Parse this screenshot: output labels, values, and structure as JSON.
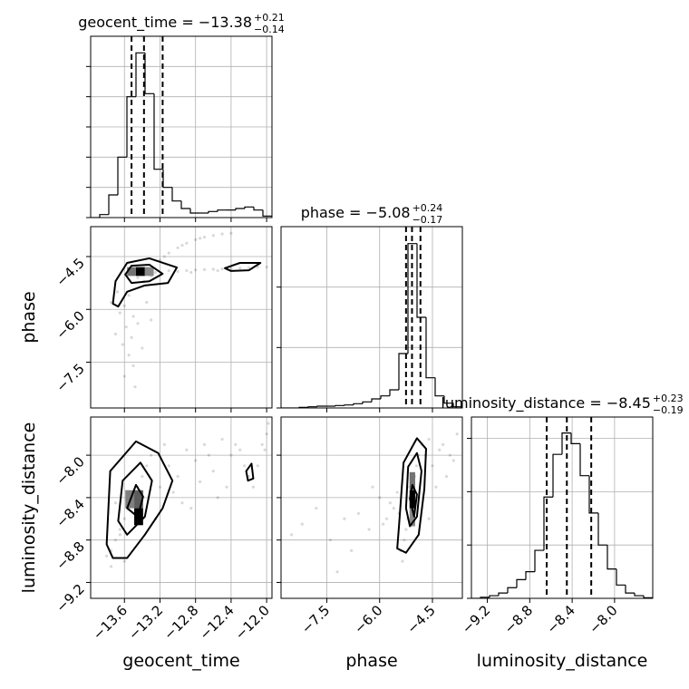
{
  "chart_data": {
    "type": "corner",
    "params": [
      {
        "label": "geocent_time",
        "title": "geocent_time = −13.38",
        "title_sup": "+0.21",
        "title_sub": "−0.14",
        "lim": [
          -13.98,
          -11.94
        ],
        "ticks": [
          {
            "value": -13.6,
            "label": "−13.6"
          },
          {
            "value": -13.2,
            "label": "−13.2"
          },
          {
            "value": -12.8,
            "label": "−12.8"
          },
          {
            "value": -12.4,
            "label": "−12.4"
          },
          {
            "value": -12.0,
            "label": "−12.0"
          }
        ],
        "quantiles": [
          -13.52,
          -13.38,
          -13.17
        ],
        "hist": {
          "bins": [
            -13.98,
            -13.878,
            -13.776,
            -13.674,
            -13.572,
            -13.47,
            -13.368,
            -13.266,
            -13.164,
            -13.062,
            -12.96,
            -12.858,
            -12.756,
            -12.654,
            -12.552,
            -12.45,
            -12.348,
            -12.246,
            -12.144,
            -12.042,
            -11.94
          ],
          "counts": [
            0,
            0.1,
            0.75,
            2.0,
            4.0,
            5.45,
            4.1,
            1.6,
            1.0,
            0.55,
            0.3,
            0.15,
            0.15,
            0.2,
            0.25,
            0.25,
            0.3,
            0.35,
            0.25,
            0.05
          ],
          "ylim": [
            0,
            6
          ],
          "yticks": [
            0,
            1,
            2,
            3,
            4,
            5
          ]
        }
      },
      {
        "label": "phase",
        "title": "phase = −5.08",
        "title_sup": "+0.24",
        "title_sub": "−0.17",
        "lim": [
          -8.8,
          -3.65
        ],
        "ticks": [
          {
            "value": -7.5,
            "label": "−7.5"
          },
          {
            "value": -6.0,
            "label": "−6.0"
          },
          {
            "value": -4.5,
            "label": "−4.5"
          }
        ],
        "quantiles": [
          -5.25,
          -5.08,
          -4.84
        ],
        "hist": {
          "bins": [
            -8.8,
            -8.5425,
            -8.285,
            -8.0275,
            -7.77,
            -7.5125,
            -7.255,
            -6.9975,
            -6.74,
            -6.4825,
            -6.225,
            -5.9675,
            -5.71,
            -5.4525,
            -5.195,
            -4.9375,
            -4.68,
            -4.4225,
            -4.165,
            -3.9075,
            -3.65
          ],
          "counts": [
            0,
            0,
            0.01,
            0.02,
            0.03,
            0.03,
            0.04,
            0.05,
            0.07,
            0.1,
            0.15,
            0.2,
            0.3,
            0.9,
            2.72,
            1.5,
            0.5,
            0.2,
            0.08,
            0.02
          ],
          "ylim": [
            0,
            3
          ],
          "yticks": [
            0,
            1,
            2
          ]
        }
      },
      {
        "label": "luminosity_distance",
        "title": "luminosity_distance = −8.45",
        "title_sup": "+0.23",
        "title_sub": "−0.19",
        "lim": [
          -9.35,
          -7.64
        ],
        "ticks": [
          {
            "value": -9.2,
            "label": "−9.2"
          },
          {
            "value": -8.8,
            "label": "−8.8"
          },
          {
            "value": -8.4,
            "label": "−8.4"
          },
          {
            "value": -8.0,
            "label": "−8.0"
          }
        ],
        "quantiles": [
          -8.64,
          -8.45,
          -8.22
        ],
        "hist": {
          "bins": [
            -9.35,
            -9.2645,
            -9.179,
            -9.0935,
            -9.008,
            -8.9225,
            -8.837,
            -8.7515,
            -8.666,
            -8.5805,
            -8.495,
            -8.4095,
            -8.324,
            -8.2385,
            -8.153,
            -8.0675,
            -7.982,
            -7.8965,
            -7.811,
            -7.7255,
            -7.64
          ],
          "counts": [
            0,
            0.02,
            0.05,
            0.1,
            0.2,
            0.35,
            0.5,
            0.9,
            1.9,
            2.7,
            3.1,
            2.9,
            2.3,
            1.6,
            1.0,
            0.55,
            0.25,
            0.1,
            0.05,
            0.01
          ],
          "ylim": [
            0,
            3.4
          ],
          "yticks": [
            0,
            1,
            2,
            3
          ]
        }
      }
    ],
    "pairs": [
      {
        "x_param": 0,
        "y_param": 1,
        "points": {
          "x": [
            -13.4,
            -13.35,
            -13.45,
            -13.3,
            -13.5,
            -13.25,
            -13.38,
            -13.42,
            -13.55,
            -13.6,
            -13.5,
            -13.58,
            -13.52,
            -13.62,
            -13.55,
            -13.5,
            -13.6,
            -13.48,
            -13.65,
            -13.45,
            -13.7,
            -13.4,
            -13.75,
            -13.68,
            -13.35,
            -13.3,
            -13.2,
            -13.1,
            -13.0,
            -12.9,
            -12.8,
            -12.7,
            -12.6,
            -12.5,
            -12.4,
            -13.15,
            -12.95,
            -12.75,
            -13.1,
            -13.0,
            -12.9,
            -12.8,
            -12.7,
            -12.6,
            -12.5,
            -12.4,
            -12.3,
            -12.2,
            -12.1,
            -12.0,
            -12.85,
            -12.55
          ],
          "y": [
            -5.0,
            -4.9,
            -5.1,
            -5.05,
            -4.95,
            -4.95,
            -5.2,
            -4.85,
            -5.6,
            -5.9,
            -6.2,
            -6.5,
            -6.8,
            -7.0,
            -7.3,
            -7.6,
            -7.9,
            -8.2,
            -6.1,
            -6.4,
            -6.7,
            -7.1,
            -5.8,
            -5.5,
            -5.8,
            -6.3,
            -4.6,
            -4.4,
            -4.25,
            -4.12,
            -4.02,
            -3.95,
            -3.9,
            -3.86,
            -3.84,
            -4.5,
            -4.18,
            -3.98,
            -4.9,
            -4.92,
            -4.9,
            -4.88,
            -4.87,
            -4.86,
            -4.85,
            -4.84,
            -4.83,
            -4.82,
            -4.8,
            -4.8,
            -4.95,
            -4.9
          ]
        },
        "cells": [
          {
            "x": [
              -13.47,
              -13.37
            ],
            "y": [
              -5.05,
              -4.8
            ],
            "shade": 1
          },
          {
            "x": [
              -13.57,
              -13.47
            ],
            "y": [
              -5.05,
              -4.8
            ],
            "shade": 0.5
          },
          {
            "x": [
              -13.37,
              -13.27
            ],
            "y": [
              -5.05,
              -4.8
            ],
            "shade": 0.4
          }
        ],
        "contours": [
          {
            "x": [
              -13.73,
              -13.7,
              -13.57,
              -13.32,
              -13.01,
              -13.11,
              -13.37,
              -13.57,
              -13.67
            ],
            "y": [
              -5.84,
              -5.2,
              -4.68,
              -4.55,
              -4.81,
              -5.25,
              -5.32,
              -5.5,
              -5.92
            ]
          },
          {
            "x": [
              -13.59,
              -13.52,
              -13.32,
              -13.17,
              -13.32,
              -13.52
            ],
            "y": [
              -5.01,
              -4.76,
              -4.73,
              -4.99,
              -5.2,
              -5.25
            ]
          },
          {
            "x": [
              -12.47,
              -12.3,
              -12.07,
              -12.2,
              -12.4
            ],
            "y": [
              -4.83,
              -4.68,
              -4.68,
              -4.89,
              -4.91
            ]
          }
        ]
      },
      {
        "x_param": 0,
        "y_param": 2,
        "points": {
          "x": [
            -13.75,
            -13.7,
            -13.65,
            -13.6,
            -13.55,
            -13.5,
            -13.45,
            -13.4,
            -13.35,
            -13.3,
            -13.6,
            -13.5,
            -13.4,
            -13.7,
            -13.8,
            -13.75,
            -13.65,
            -13.2,
            -13.1,
            -13.0,
            -12.9,
            -12.8,
            -12.7,
            -12.6,
            -12.5,
            -12.4,
            -12.3,
            -12.2,
            -12.1,
            -12.0,
            -11.98,
            -12.05,
            -12.15,
            -12.35,
            -12.55,
            -12.75,
            -12.95,
            -13.15,
            -13.25,
            -12.45,
            -12.65,
            -12.85,
            -13.05,
            -12.25,
            -12.02
          ],
          "y": [
            -8.9,
            -8.8,
            -8.7,
            -8.6,
            -8.5,
            -8.4,
            -8.3,
            -8.2,
            -8.1,
            -8.0,
            -9.0,
            -8.55,
            -8.35,
            -8.45,
            -8.95,
            -9.05,
            -8.75,
            -8.3,
            -8.1,
            -8.2,
            -7.95,
            -8.05,
            -7.9,
            -8.15,
            -7.85,
            -8.0,
            -7.95,
            -8.2,
            -8.1,
            -7.8,
            -7.7,
            -7.9,
            -8.3,
            -7.9,
            -8.4,
            -8.25,
            -8.45,
            -7.9,
            -8.6,
            -8.3,
            -8.0,
            -8.5,
            -8.35,
            -8.1,
            -7.95
          ]
        },
        "cells": [
          {
            "x": [
              -13.49,
              -13.39
            ],
            "y": [
              -8.66,
              -8.5
            ],
            "shade": 1
          },
          {
            "x": [
              -13.49,
              -13.39
            ],
            "y": [
              -8.5,
              -8.33
            ],
            "shade": 0.6
          },
          {
            "x": [
              -13.59,
              -13.49
            ],
            "y": [
              -8.5,
              -8.33
            ],
            "shade": 0.45
          }
        ],
        "contours": [
          {
            "x": [
              -13.8,
              -13.76,
              -13.47,
              -13.22,
              -13.06,
              -13.17,
              -13.37,
              -13.57,
              -13.73
            ],
            "y": [
              -8.84,
              -8.15,
              -7.87,
              -7.98,
              -8.24,
              -8.5,
              -8.75,
              -8.97,
              -8.97
            ]
          },
          {
            "x": [
              -13.67,
              -13.62,
              -13.42,
              -13.29,
              -13.37,
              -13.57
            ],
            "y": [
              -8.62,
              -8.24,
              -8.07,
              -8.24,
              -8.58,
              -8.75
            ]
          },
          {
            "x": [
              -13.57,
              -13.47,
              -13.39,
              -13.45
            ],
            "y": [
              -8.5,
              -8.28,
              -8.39,
              -8.58
            ]
          },
          {
            "x": [
              -12.23,
              -12.17,
              -12.15,
              -12.21
            ],
            "y": [
              -8.15,
              -8.08,
              -8.22,
              -8.24
            ]
          }
        ]
      },
      {
        "x_param": 1,
        "y_param": 2,
        "points": {
          "x": [
            -5.1,
            -5.0,
            -5.2,
            -4.9,
            -5.05,
            -5.15,
            -4.95,
            -5.3,
            -4.8,
            -5.25,
            -4.7,
            -5.4,
            -4.6,
            -4.5,
            -4.3,
            -4.1,
            -3.9,
            -4.4,
            -4.2,
            -5.6,
            -5.8,
            -6.0,
            -6.3,
            -6.6,
            -7.0,
            -7.4,
            -7.8,
            -8.2,
            -8.5,
            -6.2,
            -6.8,
            -7.2,
            -5.5,
            -5.7,
            -5.9,
            -4.0,
            -3.8,
            -4.6,
            -5.35,
            -5.45
          ],
          "y": [
            -8.4,
            -8.2,
            -8.6,
            -8.0,
            -8.5,
            -8.3,
            -8.1,
            -8.8,
            -7.9,
            -8.7,
            -8.0,
            -8.9,
            -7.85,
            -8.1,
            -7.95,
            -8.2,
            -8.05,
            -8.3,
            -7.9,
            -8.5,
            -8.6,
            -8.4,
            -8.7,
            -8.55,
            -8.6,
            -8.8,
            -8.5,
            -8.65,
            -8.75,
            -8.3,
            -8.9,
            -9.1,
            -8.35,
            -8.45,
            -8.65,
            -8.0,
            -7.8,
            -8.6,
            -9.0,
            -8.55
          ]
        },
        "cells": [
          {
            "x": [
              -5.15,
              -4.99
            ],
            "y": [
              -8.5,
              -8.33
            ],
            "shade": 1
          },
          {
            "x": [
              -5.15,
              -4.99
            ],
            "y": [
              -8.33,
              -8.16
            ],
            "shade": 0.5
          },
          {
            "x": [
              -5.15,
              -4.99
            ],
            "y": [
              -8.67,
              -8.5
            ],
            "shade": 0.4
          }
        ],
        "contours": [
          {
            "x": [
              -5.45,
              -5.32,
              -4.94,
              -4.68,
              -4.73,
              -4.89,
              -5.25,
              -5.5
            ],
            "y": [
              -8.67,
              -8.07,
              -7.84,
              -7.94,
              -8.32,
              -8.75,
              -8.92,
              -8.88
            ]
          },
          {
            "x": [
              -5.25,
              -5.19,
              -4.94,
              -4.81,
              -4.94,
              -5.14
            ],
            "y": [
              -8.5,
              -8.11,
              -7.98,
              -8.15,
              -8.58,
              -8.67
            ]
          },
          {
            "x": [
              -5.14,
              -5.07,
              -4.94,
              -5.02
            ],
            "y": [
              -8.41,
              -8.28,
              -8.37,
              -8.58
            ]
          }
        ]
      }
    ],
    "grid": true
  }
}
